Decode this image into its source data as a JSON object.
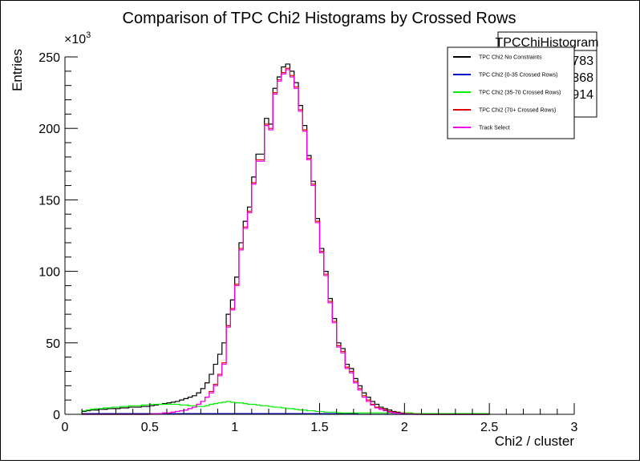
{
  "chart_data": {
    "type": "histogram",
    "title": "Comparison of TPC Chi2 Histograms by Crossed Rows",
    "xlabel": "Chi2 / cluster",
    "ylabel": "Entries",
    "y_multiplier": "×10",
    "y_multiplier_exp": "3",
    "xlim": [
      0,
      3
    ],
    "ylim": [
      0,
      250
    ],
    "x_ticks": [
      "0",
      "0.5",
      "1",
      "1.5",
      "2",
      "2.5",
      "3"
    ],
    "y_ticks": [
      "0",
      "50",
      "100",
      "150",
      "200",
      "250"
    ],
    "bin_width": 0.025,
    "stats_box": {
      "name": "TPCChiHistogram",
      "entries": "169783",
      "mean": "1.368",
      "std_dev": "0.2914"
    },
    "legend": [
      "TPC Chi2 No Constraints",
      "TPC Chi2 (0-35 Crossed Rows)",
      "TPC Chi2 (35-70 Crossed Rows)",
      "TPC Chi2 (70+ Crossed Rows)",
      "Track Select"
    ],
    "series": [
      {
        "name": "TPC Chi2 No Constraints",
        "color": "#000000",
        "x_start": 0.1,
        "values": [
          2,
          2.5,
          3,
          3,
          3.5,
          3.5,
          4,
          4,
          4,
          4.5,
          4.5,
          5,
          5,
          5,
          5.5,
          5.5,
          6,
          6.5,
          7,
          7.5,
          8,
          8.5,
          9,
          10,
          11,
          12,
          13,
          15,
          18,
          22,
          28,
          35,
          42,
          50,
          70,
          80,
          96,
          120,
          135,
          145,
          166,
          182,
          182,
          207,
          203,
          228,
          236,
          243,
          245,
          240,
          232,
          216,
          202,
          181,
          163,
          137,
          116,
          100,
          81,
          67,
          50,
          46,
          35,
          32,
          25,
          20,
          15,
          12,
          9,
          7,
          5,
          4,
          3,
          2,
          1.5,
          1,
          0.8,
          0.5,
          0.3,
          0.2,
          0.1,
          0,
          0,
          0,
          0,
          0,
          0,
          0,
          0,
          0,
          0,
          0,
          0,
          0,
          0,
          0
        ]
      },
      {
        "name": "TPC Chi2 (0-35 Crossed Rows)",
        "color": "#0000cc",
        "x_start": 0.1,
        "values": [
          0.5,
          0.5,
          0.5,
          0.5,
          0.5,
          0.5,
          0.5,
          0.5,
          0.5,
          0.5,
          0.5,
          0.5,
          0.5,
          0.5,
          0.5,
          0.5,
          0.5,
          0.5,
          0.5,
          0.5,
          0.5,
          0.5,
          0.5,
          0.5,
          0.5,
          0.5,
          0.5,
          0.5,
          0.5,
          0.5,
          0.5,
          0.5,
          0.5,
          0.5,
          0.5,
          0.5,
          0.5,
          0.5,
          0.5,
          0.5,
          0.5,
          0.5,
          0.5,
          0.5,
          0.5,
          0.5,
          0.5,
          0.5,
          0.5,
          0.5,
          0.5,
          0.5,
          0.5,
          0.5,
          0.5,
          0.5,
          0.5,
          0.5,
          0.5,
          0.5,
          0.5,
          0.5,
          0.5,
          0.5,
          0.5,
          0,
          0,
          0,
          0,
          0,
          0,
          0,
          0,
          0,
          0,
          0,
          0,
          0,
          0,
          0,
          0,
          0,
          0,
          0,
          0,
          0,
          0,
          0,
          0,
          0,
          0,
          0,
          0,
          0,
          0,
          0
        ]
      },
      {
        "name": "TPC Chi2 (35-70 Crossed Rows)",
        "color": "#00ee00",
        "x_start": 0.1,
        "values": [
          2.5,
          3,
          3.5,
          4,
          4,
          4.5,
          4.5,
          5,
          5,
          5.5,
          5.5,
          6,
          6,
          6,
          6.5,
          6.5,
          7,
          7,
          7,
          7,
          7,
          7,
          7,
          6.5,
          6.5,
          6,
          6,
          5.5,
          5.5,
          6,
          7,
          7.5,
          8,
          8.5,
          9,
          8.5,
          8,
          8,
          7.5,
          7,
          7,
          6.5,
          6,
          6,
          5.5,
          5,
          5,
          4.5,
          4,
          4,
          3.5,
          3,
          3,
          2.5,
          2.5,
          2,
          2,
          1.5,
          1.5,
          1.5,
          1,
          1,
          1,
          1,
          1,
          1,
          1,
          1,
          1,
          1,
          1,
          1,
          1,
          1,
          1,
          1,
          1,
          1,
          0.5,
          0.5,
          0.5,
          0.5,
          0.5,
          0.5,
          0.5,
          0.5,
          0.5,
          0.5,
          0.5,
          0.5,
          0.5,
          0.5,
          0.5,
          0.5,
          0.5,
          0.5
        ]
      },
      {
        "name": "TPC Chi2 (70+ Crossed Rows)",
        "color": "#dd0000",
        "x_start": 0.1,
        "values": [
          0,
          0,
          0,
          0,
          0,
          0,
          0,
          0,
          0,
          0,
          0,
          0,
          0,
          0,
          0,
          0,
          0.5,
          0.5,
          0.5,
          1,
          1,
          1.5,
          2,
          2.5,
          3,
          4,
          5,
          7,
          9,
          12,
          16,
          21,
          28,
          36,
          62,
          74,
          91,
          116,
          131,
          142,
          162,
          178,
          178,
          203,
          200,
          225,
          234,
          239,
          242,
          237,
          229,
          213,
          199,
          179,
          161,
          135,
          114,
          98,
          79,
          65,
          48,
          44,
          33,
          30,
          23,
          18,
          13,
          10,
          7,
          5,
          4,
          3,
          2,
          1.5,
          1,
          0.8,
          0.5,
          0.3,
          0.2,
          0.1,
          0,
          0,
          0,
          0,
          0,
          0,
          0,
          0,
          0,
          0,
          0,
          0,
          0,
          0,
          0,
          0
        ]
      },
      {
        "name": "Track Select",
        "color": "#ee00ee",
        "x_start": 0.1,
        "values": [
          0,
          0,
          0,
          0,
          0,
          0,
          0,
          0,
          0,
          0,
          0,
          0,
          0,
          0,
          0,
          0,
          0.5,
          0.5,
          0.5,
          1,
          1,
          1.5,
          2,
          2.5,
          3,
          4,
          5,
          7,
          9,
          12,
          15,
          20,
          27,
          35,
          61,
          73,
          90,
          115,
          130,
          141,
          161,
          177,
          177,
          202,
          199,
          224,
          233,
          238,
          241,
          236,
          228,
          212,
          198,
          178,
          160,
          134,
          113,
          97,
          78,
          64,
          47,
          43,
          32,
          29,
          22,
          17,
          12,
          9,
          6.5,
          4.5,
          3.5,
          2.5,
          1.5,
          1,
          0.8,
          0.5,
          0.3,
          0.2,
          0.1,
          0,
          0,
          0,
          0,
          0,
          0,
          0,
          0,
          0,
          0,
          0,
          0,
          0,
          0,
          0,
          0,
          0
        ]
      }
    ]
  }
}
